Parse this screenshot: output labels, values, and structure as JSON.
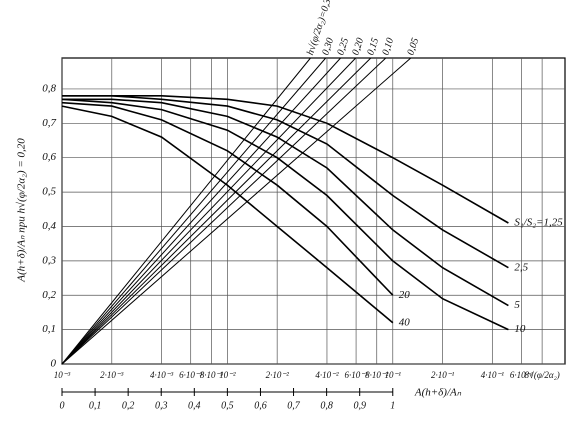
{
  "chart_data": {
    "type": "line",
    "ylabel": "A(h+δ)/Aₙ при h√(φ/2α₂) = 0,20",
    "x2label": "A(h+δ)/Aₙ",
    "log_x": true,
    "grid": true,
    "color": "#000000",
    "xlim": [
      0.001,
      1.1
    ],
    "ylim": [
      0,
      0.89
    ],
    "xticks": [
      {
        "value": 0.001,
        "label": "10⁻³"
      },
      {
        "value": 0.002,
        "label": "2·10⁻³"
      },
      {
        "value": 0.004,
        "label": "4·10⁻³"
      },
      {
        "value": 0.006,
        "label": "6·10⁻³"
      },
      {
        "value": 0.008,
        "label": "8·10⁻³"
      },
      {
        "value": 0.01,
        "label": "10⁻²"
      },
      {
        "value": 0.02,
        "label": "2·10⁻²"
      },
      {
        "value": 0.04,
        "label": "4·10⁻²"
      },
      {
        "value": 0.06,
        "label": "6·10⁻²"
      },
      {
        "value": 0.08,
        "label": "8·10⁻²"
      },
      {
        "value": 0.1,
        "label": "10⁻¹"
      },
      {
        "value": 0.2,
        "label": "2·10⁻¹"
      },
      {
        "value": 0.4,
        "label": "4·10⁻¹"
      },
      {
        "value": 0.6,
        "label": "6·10⁻¹"
      },
      {
        "value": 0.8,
        "label": "8√(φ/2α₂)"
      }
    ],
    "yticks": [
      0,
      {
        "value": 0.1,
        "label": "0,1"
      },
      {
        "value": 0.2,
        "label": "0,2"
      },
      {
        "value": 0.3,
        "label": "0,3"
      },
      {
        "value": 0.4,
        "label": "0,4"
      },
      {
        "value": 0.5,
        "label": "0,5"
      },
      {
        "value": 0.6,
        "label": "0,6"
      },
      {
        "value": 0.7,
        "label": "0,7"
      },
      {
        "value": 0.8,
        "label": "0,8"
      }
    ],
    "x2lim": [
      0,
      1
    ],
    "x2ticks": [
      0,
      {
        "value": 0.1,
        "label": "0,1"
      },
      {
        "value": 0.2,
        "label": "0,2"
      },
      {
        "value": 0.3,
        "label": "0,3"
      },
      {
        "value": 0.4,
        "label": "0,4"
      },
      {
        "value": 0.5,
        "label": "0,5"
      },
      {
        "value": 0.6,
        "label": "0,6"
      },
      {
        "value": 0.7,
        "label": "0,7"
      },
      {
        "value": 0.8,
        "label": "0,8"
      },
      {
        "value": 0.9,
        "label": "0,9"
      },
      1
    ],
    "series": [
      {
        "name": "S₁/S₂=1,25",
        "x": [
          0.001,
          0.002,
          0.004,
          0.01,
          0.02,
          0.04,
          0.1,
          0.2,
          0.5
        ],
        "values": [
          0.78,
          0.78,
          0.78,
          0.77,
          0.75,
          0.7,
          0.6,
          0.52,
          0.41
        ]
      },
      {
        "name": "2,5",
        "x": [
          0.001,
          0.002,
          0.004,
          0.01,
          0.02,
          0.04,
          0.1,
          0.2,
          0.5
        ],
        "values": [
          0.78,
          0.78,
          0.77,
          0.75,
          0.71,
          0.64,
          0.49,
          0.39,
          0.28
        ]
      },
      {
        "name": "5",
        "x": [
          0.001,
          0.002,
          0.004,
          0.01,
          0.02,
          0.04,
          0.1,
          0.2,
          0.5
        ],
        "values": [
          0.77,
          0.77,
          0.76,
          0.72,
          0.66,
          0.57,
          0.39,
          0.28,
          0.17
        ]
      },
      {
        "name": "10",
        "x": [
          0.001,
          0.002,
          0.004,
          0.01,
          0.02,
          0.04,
          0.1,
          0.2,
          0.5
        ],
        "values": [
          0.77,
          0.76,
          0.74,
          0.68,
          0.6,
          0.49,
          0.3,
          0.19,
          0.1
        ]
      },
      {
        "name": "20",
        "x": [
          0.001,
          0.002,
          0.004,
          0.01,
          0.02,
          0.04,
          0.1
        ],
        "values": [
          0.76,
          0.75,
          0.71,
          0.62,
          0.52,
          0.4,
          0.2
        ]
      },
      {
        "name": "40",
        "x": [
          0.001,
          0.002,
          0.004,
          0.01,
          0.02,
          0.04,
          0.1
        ],
        "values": [
          0.75,
          0.72,
          0.66,
          0.52,
          0.4,
          0.28,
          0.12
        ]
      }
    ],
    "lines": [
      {
        "name": "h√(φ/2α₂)=0,35",
        "x": [
          0.001,
          0.0318
        ],
        "values": [
          0,
          0.89
        ]
      },
      {
        "name": "0,30",
        "x": [
          0.001,
          0.0393
        ],
        "values": [
          0,
          0.89
        ]
      },
      {
        "name": "0,25",
        "x": [
          0.001,
          0.0484
        ],
        "values": [
          0,
          0.89
        ]
      },
      {
        "name": "0,20",
        "x": [
          0.001,
          0.0597
        ],
        "values": [
          0,
          0.89
        ]
      },
      {
        "name": "0,15",
        "x": [
          0.001,
          0.0736
        ],
        "values": [
          0,
          0.89
        ]
      },
      {
        "name": "0,10",
        "x": [
          0.001,
          0.0907
        ],
        "values": [
          0,
          0.89
        ]
      },
      {
        "name": "0,05",
        "x": [
          0.001,
          0.1285
        ],
        "values": [
          0,
          0.89
        ]
      }
    ]
  }
}
